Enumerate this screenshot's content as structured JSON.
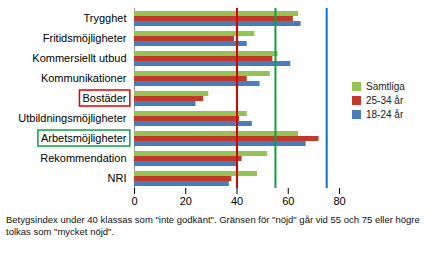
{
  "chart_data": {
    "type": "bar",
    "orientation": "horizontal",
    "categories": [
      "Trygghet",
      "Fritidsmöjligheter",
      "Kommersiellt utbud",
      "Kommunikationer",
      "Bostäder",
      "Utbildningsmöjligheter",
      "Arbetsmöjligheter",
      "Rekommendation",
      "NRI"
    ],
    "series": [
      {
        "name": "Samtliga",
        "color": "#92c353",
        "values": [
          64,
          47,
          56,
          53,
          29,
          44,
          64,
          52,
          48
        ]
      },
      {
        "name": "25-34 år",
        "color": "#c0392b",
        "values": [
          62,
          39,
          54,
          44,
          27,
          41,
          72,
          42,
          38
        ]
      },
      {
        "name": "18-24 år",
        "color": "#4a7ebb",
        "values": [
          65,
          44,
          61,
          49,
          24,
          46,
          67,
          40,
          37
        ]
      }
    ],
    "xlim": [
      0,
      80
    ],
    "xticks": [
      0,
      20,
      40,
      60,
      80
    ],
    "grid": false,
    "legend": "right",
    "reference_lines": [
      {
        "value": 40,
        "color": "#e00000"
      },
      {
        "value": 55,
        "color": "#10a040"
      },
      {
        "value": 75,
        "color": "#1070c0"
      }
    ],
    "highlights": [
      {
        "category": "Bostäder",
        "color": "#e00000"
      },
      {
        "category": "Arbetsmöjligheter",
        "color": "#10a040"
      }
    ],
    "caption": "Betygsindex under 40 klassas som \"inte godkänt\". Gränsen för \"nöjd\" går vid 55 och 75 eller högre tolkas som \"mycket nöjd\"."
  }
}
